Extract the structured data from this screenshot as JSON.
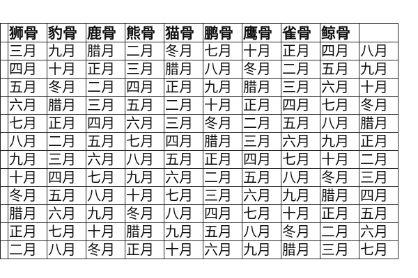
{
  "table": {
    "headers": [
      "狮骨",
      "豹骨",
      "鹿骨",
      "熊骨",
      "猫骨",
      "鹏骨",
      "鹰骨",
      "雀骨",
      "鲸骨",
      ""
    ],
    "rows": [
      [
        "三月",
        "九月",
        "腊月",
        "二月",
        "冬月",
        "七月",
        "十月",
        "正月",
        "四月",
        "八月"
      ],
      [
        "四月",
        "十月",
        "正月",
        "三月",
        "腊月",
        "八月",
        "冬月",
        "二月",
        "五月",
        "九月"
      ],
      [
        "五月",
        "冬月",
        "二月",
        "四月",
        "正月",
        "九月",
        "腊月",
        "三月",
        "六月",
        "十月"
      ],
      [
        "六月",
        "腊月",
        "三月",
        "五月",
        "二月",
        "十月",
        "正月",
        "四月",
        "七月",
        "冬月"
      ],
      [
        "七月",
        "正月",
        "四月",
        "六月",
        "三月",
        "冬月",
        "二月",
        "五月",
        "八月",
        "腊月"
      ],
      [
        "八月",
        "二月",
        "五月",
        "七月",
        "四月",
        "腊月",
        "三月",
        "六月",
        "九月",
        "正月"
      ],
      [
        "九月",
        "三月",
        "六月",
        "八月",
        "五月",
        "正月",
        "四月",
        "七月",
        "十月",
        "二月"
      ],
      [
        "十月",
        "四月",
        "七月",
        "九月",
        "六月",
        "二月",
        "五月",
        "八月",
        "冬月",
        "三月"
      ],
      [
        "冬月",
        "五月",
        "八月",
        "十月",
        "七月",
        "三月",
        "六月",
        "九月",
        "腊月",
        "四月"
      ],
      [
        "腊月",
        "六月",
        "九月",
        "冬月",
        "八月",
        "四月",
        "七月",
        "十月",
        "正月",
        "五月"
      ],
      [
        "正月",
        "七月",
        "十月",
        "腊月",
        "九月",
        "五月",
        "八月",
        "冬月",
        "二月",
        "六月"
      ],
      [
        "二月",
        "八月",
        "冬月",
        "正月",
        "十月",
        "六月",
        "九月",
        "腊月",
        "三月",
        "七月"
      ]
    ]
  }
}
